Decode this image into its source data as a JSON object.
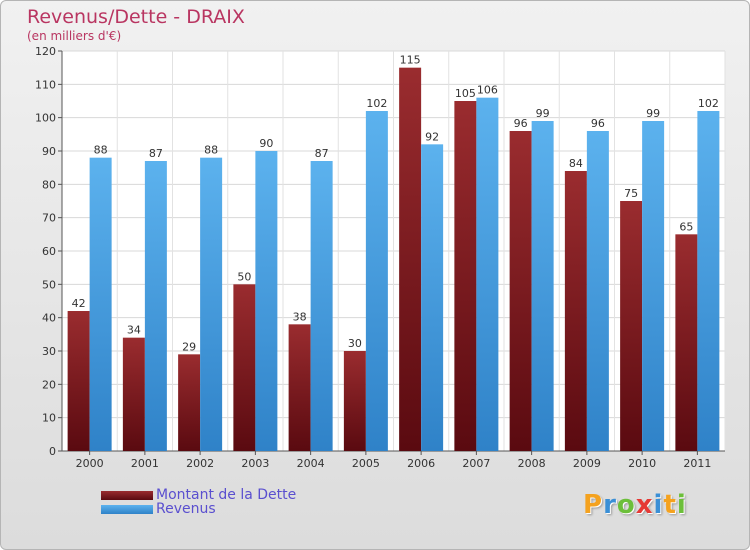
{
  "header": {
    "title": "Revenus/Dette - DRAIX",
    "subtitle": "(en milliers d'€)"
  },
  "chart_data": {
    "type": "bar",
    "title": "Revenus/Dette - DRAIX",
    "subtitle": "(en milliers d'€)",
    "xlabel": "",
    "ylabel": "",
    "ylim": [
      0,
      120
    ],
    "yticks": [
      0,
      10,
      20,
      30,
      40,
      50,
      60,
      70,
      80,
      90,
      100,
      110,
      120
    ],
    "grid": true,
    "legend_position": "bottom-left",
    "categories": [
      "2000",
      "2001",
      "2002",
      "2003",
      "2004",
      "2005",
      "2006",
      "2007",
      "2008",
      "2009",
      "2010",
      "2011"
    ],
    "series": [
      {
        "name": "Montant de la Dette",
        "color": "#7b1a22",
        "values": [
          42,
          34,
          29,
          50,
          38,
          30,
          115,
          105,
          96,
          84,
          75,
          65
        ]
      },
      {
        "name": "Revenus",
        "color": "#4ea6e6",
        "values": [
          88,
          87,
          88,
          90,
          87,
          102,
          92,
          106,
          99,
          96,
          99,
          102
        ]
      }
    ]
  },
  "legend": {
    "items": [
      {
        "label": "Montant de la Dette",
        "color": "#7b1a22"
      },
      {
        "label": "Revenus",
        "color": "#4ea6e6"
      }
    ]
  },
  "logo": {
    "letters": [
      "P",
      "r",
      "o",
      "x",
      "i",
      "t",
      "i"
    ],
    "colors": [
      "#f4a21f",
      "#3a8fd6",
      "#6cbf3a",
      "#e53935",
      "#3a8fd6",
      "#f4a21f",
      "#6cbf3a"
    ]
  }
}
